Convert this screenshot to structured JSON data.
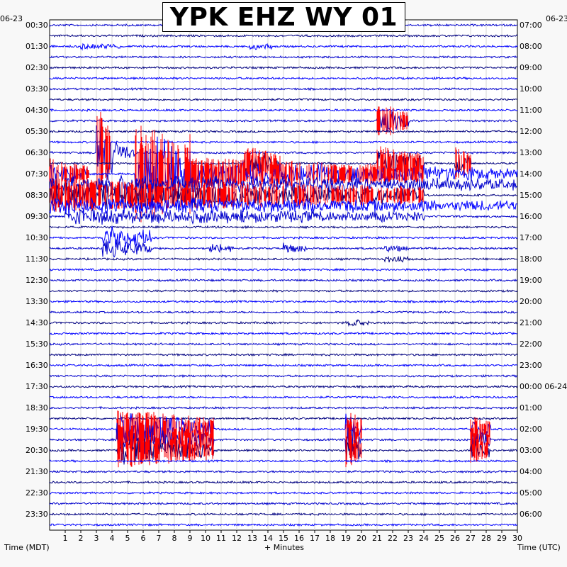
{
  "chart_data": {
    "type": "helicorder",
    "title": "YPK EHZ WY 01",
    "date_left": "06-23",
    "date_right": "06-23",
    "xlabel": "+ Minutes",
    "left_axis_label": "Time (MDT)",
    "right_axis_label": "Time (UTC)",
    "x_ticks": [
      "1",
      "2",
      "3",
      "4",
      "5",
      "6",
      "7",
      "8",
      "9",
      "10",
      "11",
      "12",
      "13",
      "14",
      "15",
      "16",
      "17",
      "18",
      "19",
      "20",
      "21",
      "22",
      "23",
      "24",
      "25",
      "26",
      "27",
      "28",
      "29",
      "30"
    ],
    "xlim": [
      0,
      30
    ],
    "lines_per_hour": 2,
    "left_time_labels": [
      "00:30",
      "01:30",
      "02:30",
      "03:30",
      "04:30",
      "05:30",
      "06:30",
      "07:30",
      "08:30",
      "09:30",
      "10:30",
      "11:30",
      "12:30",
      "13:30",
      "14:30",
      "15:30",
      "16:30",
      "17:30",
      "18:30",
      "19:30",
      "20:30",
      "21:30",
      "22:30",
      "23:30"
    ],
    "right_time_labels": [
      "07:00",
      "08:00",
      "09:00",
      "10:00",
      "11:00",
      "12:00",
      "13:00",
      "14:00",
      "15:00",
      "16:00",
      "17:00",
      "18:00",
      "19:00",
      "20:00",
      "21:00",
      "22:00",
      "23:00",
      "00:00 06-24",
      "01:00",
      "02:00",
      "03:00",
      "04:00",
      "05:00",
      "06:00"
    ],
    "trace_colors": [
      "#0000cc",
      "#000080",
      "#0000ff"
    ],
    "clip_color": "#ff0000",
    "events": [
      {
        "line": 2,
        "start_min": 2.0,
        "end_min": 4.5,
        "amp": 0.25
      },
      {
        "line": 2,
        "start_min": 12.8,
        "end_min": 14.5,
        "amp": 0.3
      },
      {
        "line": 9,
        "start_min": 21.0,
        "end_min": 23.0,
        "amp": 1.6,
        "clipped": true
      },
      {
        "line": 12,
        "start_min": 3.0,
        "end_min": 4.0,
        "amp": 5.0,
        "clipped": true
      },
      {
        "line": 12,
        "start_min": 4.0,
        "end_min": 5.5,
        "amp": 1.2
      },
      {
        "line": 13,
        "start_min": 12.5,
        "end_min": 14.8,
        "amp": 1.6,
        "clipped": true
      },
      {
        "line": 13,
        "start_min": 21.0,
        "end_min": 24.0,
        "amp": 1.6,
        "clipped": true
      },
      {
        "line": 13,
        "start_min": 26.0,
        "end_min": 27.0,
        "amp": 1.6,
        "clipped": true
      },
      {
        "line": 14,
        "start_min": 0.0,
        "end_min": 2.5,
        "amp": 1.4,
        "clipped": true
      },
      {
        "line": 14,
        "start_min": 5.5,
        "end_min": 9.0,
        "amp": 5.0,
        "clipped": true
      },
      {
        "line": 14,
        "start_min": 9.0,
        "end_min": 24.0,
        "amp": 1.5,
        "clipped": true
      },
      {
        "line": 14,
        "start_min": 24.0,
        "end_min": 30.0,
        "amp": 0.8
      },
      {
        "line": 15,
        "start_min": 0.0,
        "end_min": 30.0,
        "amp": 1.1
      },
      {
        "line": 16,
        "start_min": 0.0,
        "end_min": 24.0,
        "amp": 1.5,
        "clipped": true
      },
      {
        "line": 17,
        "start_min": 0.0,
        "end_min": 30.0,
        "amp": 0.9
      },
      {
        "line": 18,
        "start_min": 1.0,
        "end_min": 24.0,
        "amp": 0.8
      },
      {
        "line": 20,
        "start_min": 3.4,
        "end_min": 6.5,
        "amp": 1.3
      },
      {
        "line": 21,
        "start_min": 3.4,
        "end_min": 6.5,
        "amp": 1.0
      },
      {
        "line": 21,
        "start_min": 10.2,
        "end_min": 11.8,
        "amp": 0.6
      },
      {
        "line": 21,
        "start_min": 15.0,
        "end_min": 16.5,
        "amp": 0.5
      },
      {
        "line": 21,
        "start_min": 21.5,
        "end_min": 23.0,
        "amp": 0.3
      },
      {
        "line": 22,
        "start_min": 21.5,
        "end_min": 23.0,
        "amp": 0.3
      },
      {
        "line": 28,
        "start_min": 19.0,
        "end_min": 20.5,
        "amp": 0.35
      },
      {
        "line": 38,
        "start_min": 4.3,
        "end_min": 10.5,
        "amp": 1.9,
        "clipped": true
      },
      {
        "line": 38,
        "start_min": 19.0,
        "end_min": 20.0,
        "amp": 1.9,
        "clipped": true
      },
      {
        "line": 38,
        "start_min": 27.0,
        "end_min": 28.3,
        "amp": 1.2,
        "clipped": true
      },
      {
        "line": 39,
        "start_min": 4.3,
        "end_min": 10.5,
        "amp": 1.9,
        "clipped": true
      },
      {
        "line": 39,
        "start_min": 19.0,
        "end_min": 20.0,
        "amp": 1.9,
        "clipped": true
      },
      {
        "line": 39,
        "start_min": 27.0,
        "end_min": 28.3,
        "amp": 1.2,
        "clipped": true
      },
      {
        "line": 40,
        "start_min": 4.3,
        "end_min": 10.5,
        "amp": 1.6,
        "clipped": true
      },
      {
        "line": 40,
        "start_min": 19.0,
        "end_min": 20.0,
        "amp": 1.6,
        "clipped": true
      },
      {
        "line": 40,
        "start_min": 27.0,
        "end_min": 28.3,
        "amp": 1.2,
        "clipped": true
      }
    ]
  }
}
